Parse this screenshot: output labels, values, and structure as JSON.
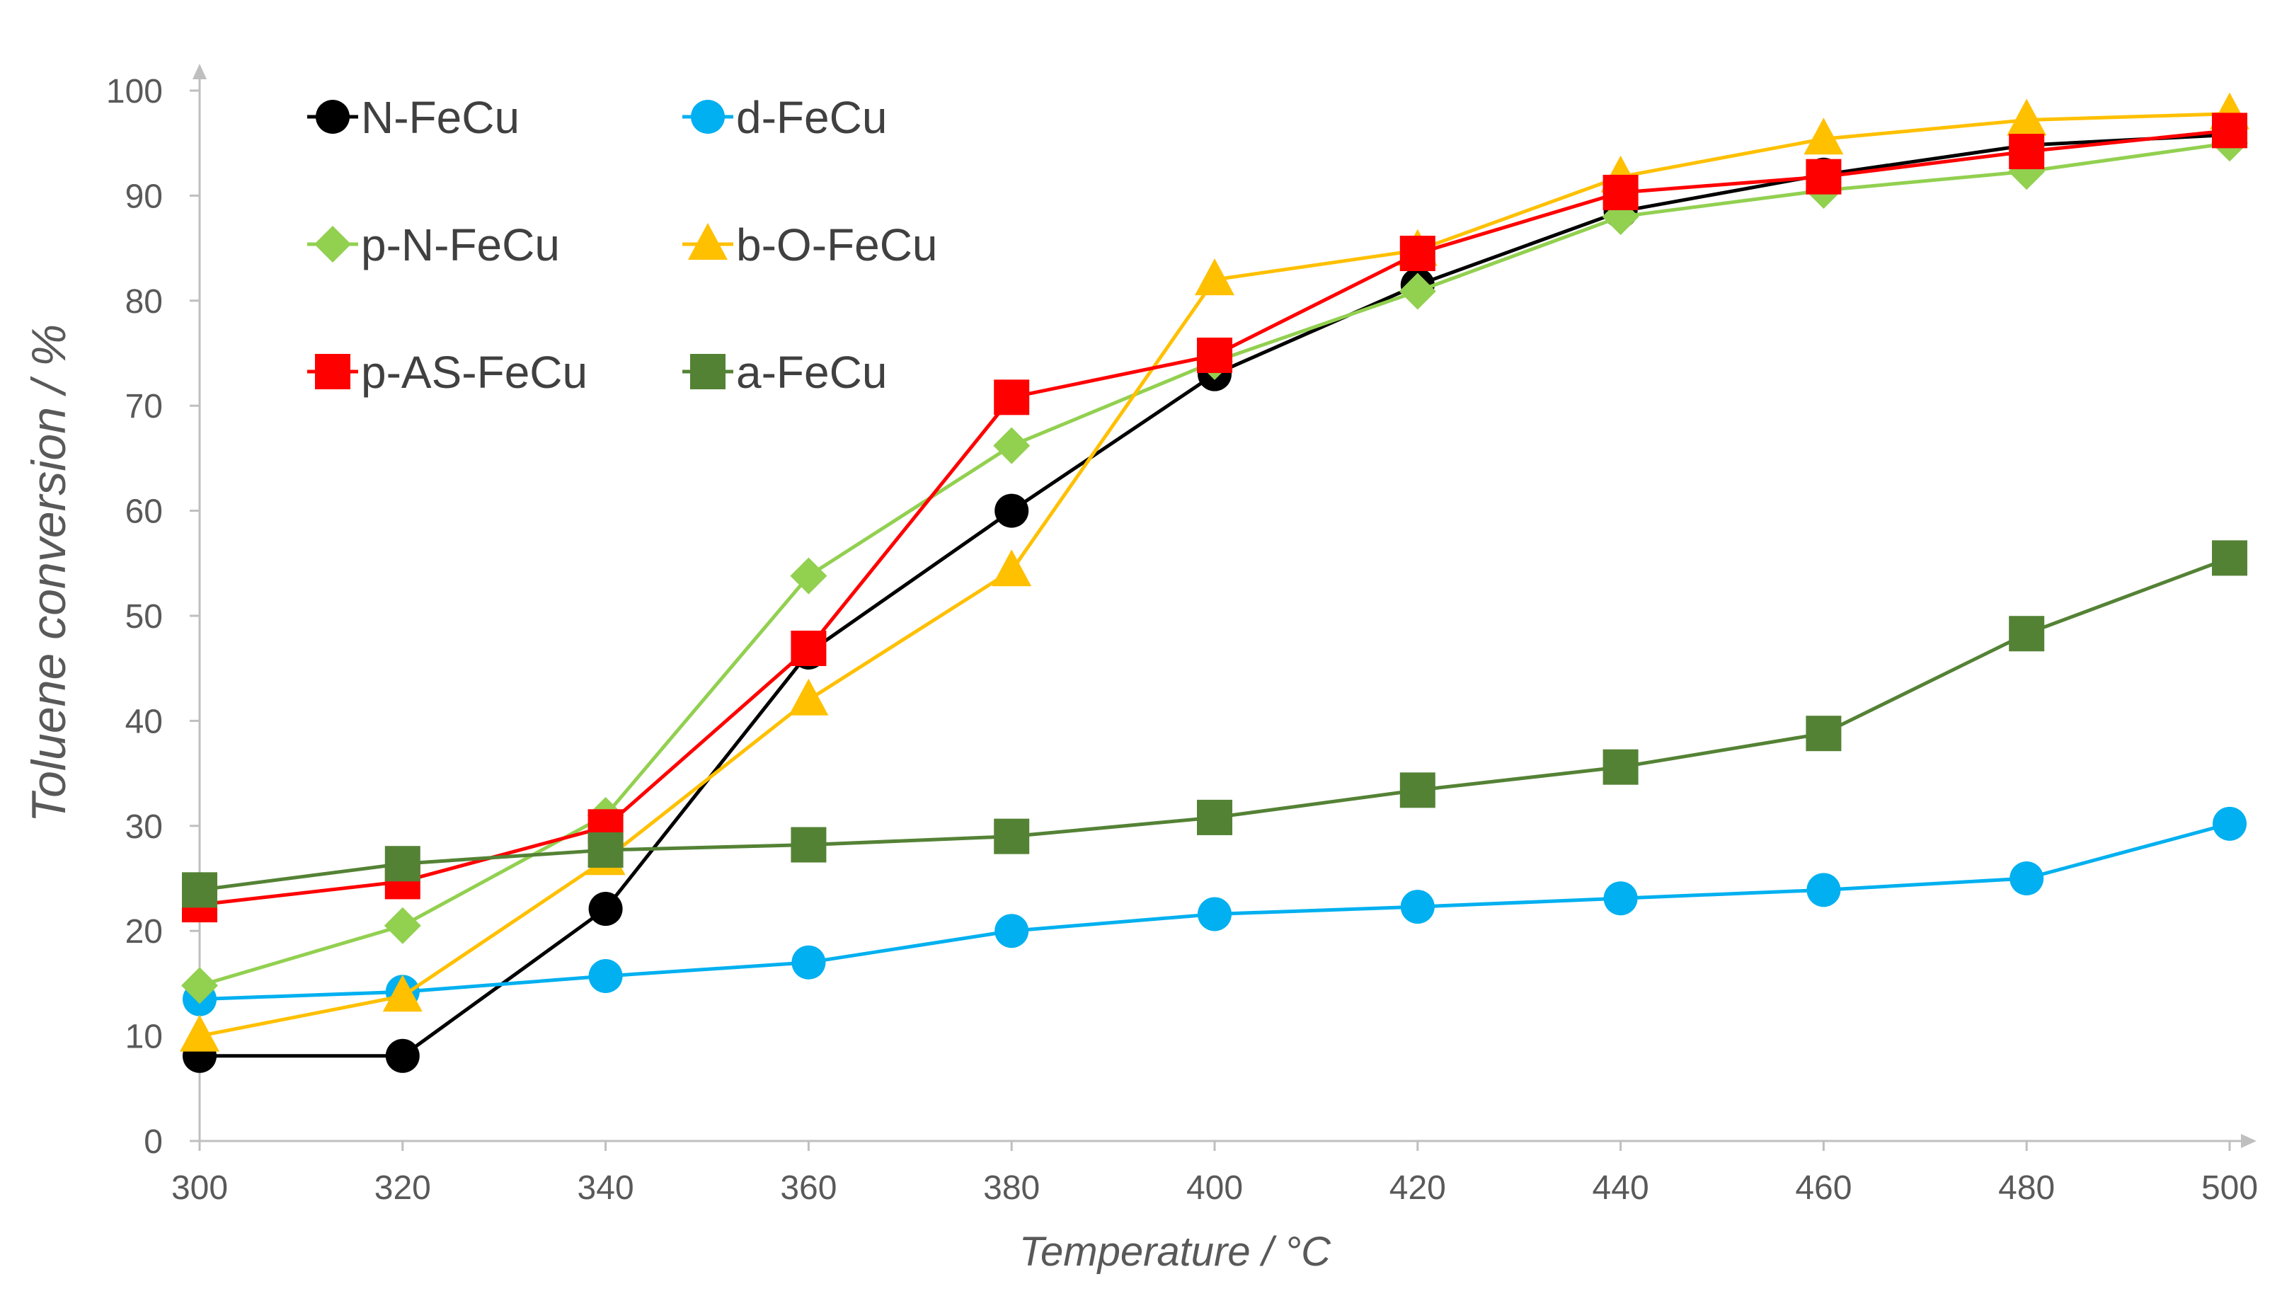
{
  "chart_data": {
    "type": "line",
    "title": "",
    "xlabel": "Temperature / °C",
    "ylabel": "Toluene conversion / %",
    "x": [
      300,
      320,
      340,
      360,
      380,
      400,
      420,
      440,
      460,
      480,
      500
    ],
    "xlim": [
      300,
      500
    ],
    "ylim": [
      0,
      100
    ],
    "xticks": [
      300,
      320,
      340,
      360,
      380,
      400,
      420,
      440,
      460,
      480,
      500
    ],
    "yticks": [
      0,
      10,
      20,
      30,
      40,
      50,
      60,
      70,
      80,
      90,
      100
    ],
    "grid": false,
    "legend_position": "top-left",
    "series": [
      {
        "name": "N-FeCu",
        "color": "#000000",
        "marker": "circle",
        "values": [
          8.1,
          8.1,
          22.1,
          46.5,
          60.0,
          73.0,
          81.5,
          88.5,
          92.0,
          94.8,
          95.8
        ]
      },
      {
        "name": "d-FeCu",
        "color": "#00B0F0",
        "marker": "circle",
        "values": [
          13.5,
          14.2,
          15.7,
          17.0,
          20.0,
          21.6,
          22.3,
          23.1,
          23.9,
          25.0,
          30.2
        ]
      },
      {
        "name": "p-N-FeCu",
        "color": "#92D050",
        "marker": "diamond",
        "values": [
          14.8,
          20.5,
          31.0,
          53.8,
          66.2,
          74.2,
          80.9,
          88.0,
          90.5,
          92.3,
          95.0
        ]
      },
      {
        "name": "b-O-FeCu",
        "color": "#FFC000",
        "marker": "triangle",
        "values": [
          10.0,
          13.8,
          26.8,
          42.0,
          54.3,
          82.0,
          84.8,
          91.8,
          95.4,
          97.2,
          97.8
        ]
      },
      {
        "name": "p-AS-FeCu",
        "color": "#FF0000",
        "marker": "square",
        "values": [
          22.5,
          24.7,
          29.9,
          46.9,
          70.8,
          74.8,
          84.5,
          90.3,
          91.8,
          94.2,
          96.2
        ]
      },
      {
        "name": "a-FeCu",
        "color": "#548235",
        "marker": "square",
        "values": [
          23.9,
          26.4,
          27.7,
          28.2,
          29.0,
          30.8,
          33.4,
          35.6,
          38.8,
          48.3,
          55.5
        ]
      }
    ]
  }
}
